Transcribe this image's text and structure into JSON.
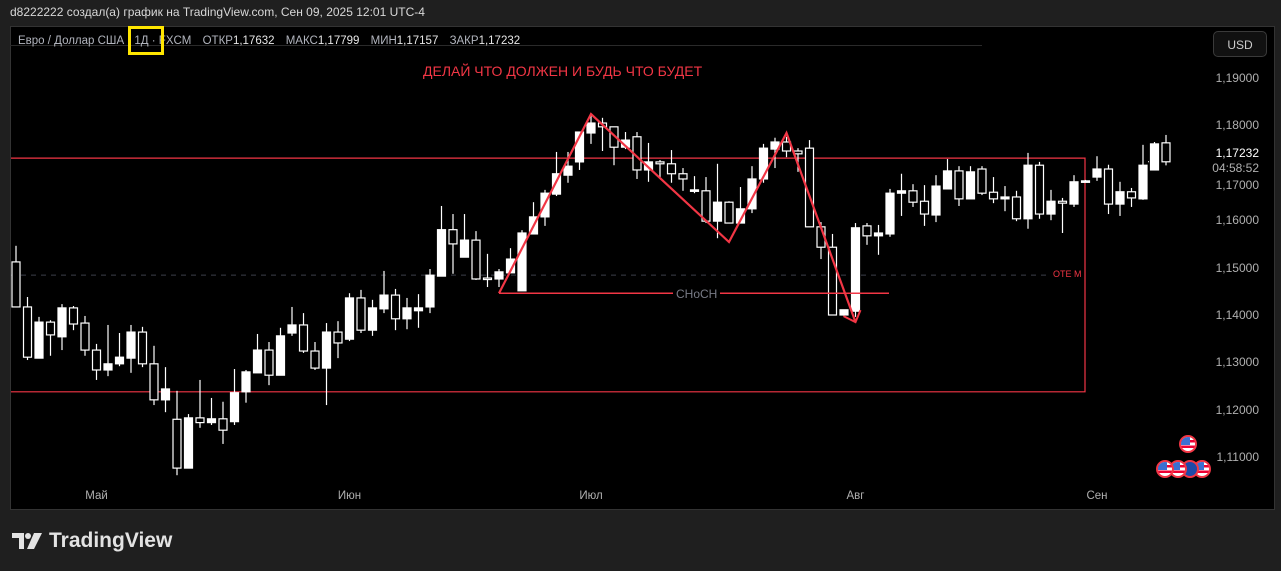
{
  "header": {
    "caption": "d8222222 создал(а) график на TradingView.com, Сен 09, 2025 12:01 UTC-4"
  },
  "legend": {
    "symbol": "Евро / Доллар США",
    "interval": "1Д",
    "exchange": "FXCM",
    "open_label": "ОТКР",
    "open": "1,17632",
    "high_label": "МАКС",
    "high": "1,17799",
    "low_label": "МИН",
    "low": "1,17157",
    "close_label": "ЗАКР",
    "close": "1,17232"
  },
  "currency_button": "USD",
  "annotation_text": "ДЕЛАЙ ЧТО ДОЛЖЕН И БУДЬ ЧТО БУДЕТ",
  "ote_label": "OTE M",
  "choch_label": "CHoCH",
  "current_price": "1,17232",
  "countdown": "04:58:52",
  "footer": {
    "logo": "TradingView"
  },
  "colors": {
    "annotation": "#f23645",
    "candle": "#ffffff",
    "background": "#000000",
    "highlight": "#ffe600"
  },
  "events": [
    {
      "icon": "us-flag-icon"
    },
    {
      "icon": "us-flag-icon"
    },
    {
      "icon": "us-flag-icon"
    },
    {
      "icon": "eu-flag-icon"
    },
    {
      "icon": "us-flag-icon"
    }
  ],
  "chart_data": {
    "type": "candlestick",
    "symbol": "EURUSD",
    "interval": "1D",
    "ylim": [
      1.105,
      1.1925
    ],
    "ytick_labels": [
      "1,19000",
      "1,18000",
      "1,17000",
      "1,16000",
      "1,15000",
      "1,14000",
      "1,13000",
      "1,12000",
      "1,11000"
    ],
    "yticks": [
      1.19,
      1.18,
      1.17,
      1.16,
      1.15,
      1.14,
      1.13,
      1.12,
      1.11
    ],
    "xtick_labels": [
      "Май",
      "Июн",
      "Июл",
      "Авг",
      "Сен"
    ],
    "xtick_candle_index": [
      7,
      29,
      50,
      73,
      94
    ],
    "ohlc": [
      [
        1.1512,
        1.1546,
        1.1417,
        1.1417
      ],
      [
        1.1417,
        1.1438,
        1.1305,
        1.1311
      ],
      [
        1.1309,
        1.1396,
        1.1309,
        1.1385
      ],
      [
        1.1385,
        1.1389,
        1.1314,
        1.1358
      ],
      [
        1.1354,
        1.1423,
        1.1326,
        1.1415
      ],
      [
        1.1415,
        1.1419,
        1.1368,
        1.1381
      ],
      [
        1.1383,
        1.1398,
        1.1314,
        1.1326
      ],
      [
        1.1326,
        1.1339,
        1.1263,
        1.1284
      ],
      [
        1.1284,
        1.1379,
        1.1271,
        1.1297
      ],
      [
        1.1297,
        1.1362,
        1.1292,
        1.1311
      ],
      [
        1.1309,
        1.1379,
        1.1278,
        1.1364
      ],
      [
        1.1364,
        1.1375,
        1.129,
        1.1297
      ],
      [
        1.1297,
        1.1335,
        1.121,
        1.1221
      ],
      [
        1.1221,
        1.129,
        1.1195,
        1.1244
      ],
      [
        1.118,
        1.124,
        1.1062,
        1.1077
      ],
      [
        1.1077,
        1.1191,
        1.1077,
        1.1183
      ],
      [
        1.1183,
        1.1263,
        1.1162,
        1.1173
      ],
      [
        1.1173,
        1.1225,
        1.1168,
        1.1181
      ],
      [
        1.1181,
        1.1217,
        1.1128,
        1.1157
      ],
      [
        1.1175,
        1.1286,
        1.1168,
        1.1236
      ],
      [
        1.1238,
        1.1284,
        1.1215,
        1.128
      ],
      [
        1.1278,
        1.136,
        1.1278,
        1.1326
      ],
      [
        1.1326,
        1.1343,
        1.1252,
        1.1273
      ],
      [
        1.1273,
        1.1373,
        1.1273,
        1.1356
      ],
      [
        1.1362,
        1.1417,
        1.1356,
        1.1379
      ],
      [
        1.1379,
        1.1404,
        1.132,
        1.1324
      ],
      [
        1.1324,
        1.1343,
        1.1284,
        1.1288
      ],
      [
        1.1288,
        1.1383,
        1.121,
        1.1364
      ],
      [
        1.1364,
        1.1387,
        1.1309,
        1.1341
      ],
      [
        1.1349,
        1.1446,
        1.1345,
        1.1436
      ],
      [
        1.1436,
        1.1453,
        1.1362,
        1.1368
      ],
      [
        1.1368,
        1.1432,
        1.1356,
        1.1415
      ],
      [
        1.1413,
        1.1493,
        1.1404,
        1.1442
      ],
      [
        1.1442,
        1.1455,
        1.1368,
        1.1392
      ],
      [
        1.1392,
        1.1436,
        1.137,
        1.1415
      ],
      [
        1.1409,
        1.1444,
        1.1373,
        1.1415
      ],
      [
        1.1417,
        1.1497,
        1.1404,
        1.1484
      ],
      [
        1.1482,
        1.163,
        1.1482,
        1.158
      ],
      [
        1.158,
        1.1613,
        1.1487,
        1.155
      ],
      [
        1.1522,
        1.1613,
        1.1522,
        1.1558
      ],
      [
        1.1558,
        1.1577,
        1.1474,
        1.1476
      ],
      [
        1.1478,
        1.1529,
        1.1459,
        1.1476
      ],
      [
        1.1476,
        1.1497,
        1.1459,
        1.1491
      ],
      [
        1.1489,
        1.1541,
        1.1489,
        1.1518
      ],
      [
        1.1451,
        1.1579,
        1.1451,
        1.1573
      ],
      [
        1.1571,
        1.1638,
        1.1571,
        1.1607
      ],
      [
        1.1607,
        1.1664,
        1.1588,
        1.1657
      ],
      [
        1.1655,
        1.1744,
        1.1651,
        1.1698
      ],
      [
        1.1695,
        1.1744,
        1.1679,
        1.1714
      ],
      [
        1.1723,
        1.1786,
        1.1706,
        1.1786
      ],
      [
        1.1784,
        1.1822,
        1.1761,
        1.1805
      ],
      [
        1.1805,
        1.1816,
        1.1746,
        1.1797
      ],
      [
        1.1797,
        1.1797,
        1.1716,
        1.1754
      ],
      [
        1.1754,
        1.1786,
        1.175,
        1.1769
      ],
      [
        1.1776,
        1.1786,
        1.1687,
        1.1706
      ],
      [
        1.1706,
        1.1763,
        1.1681,
        1.1723
      ],
      [
        1.1723,
        1.1727,
        1.1691,
        1.1719
      ],
      [
        1.1719,
        1.1748,
        1.1679,
        1.1698
      ],
      [
        1.1698,
        1.171,
        1.1662,
        1.1687
      ],
      [
        1.1662,
        1.1693,
        1.1657,
        1.1664
      ],
      [
        1.1662,
        1.1691,
        1.1594,
        1.1598
      ],
      [
        1.1598,
        1.1719,
        1.1562,
        1.1638
      ],
      [
        1.1638,
        1.164,
        1.1594,
        1.1594
      ],
      [
        1.1594,
        1.167,
        1.1594,
        1.1624
      ],
      [
        1.1624,
        1.1714,
        1.1615,
        1.1687
      ],
      [
        1.1687,
        1.1761,
        1.1679,
        1.1752
      ],
      [
        1.175,
        1.1774,
        1.171,
        1.1765
      ],
      [
        1.1765,
        1.1776,
        1.1733,
        1.1746
      ],
      [
        1.1746,
        1.1752,
        1.1702,
        1.174
      ],
      [
        1.1752,
        1.1769,
        1.1586,
        1.1586
      ],
      [
        1.1586,
        1.1596,
        1.1518,
        1.1543
      ],
      [
        1.1543,
        1.1571,
        1.14,
        1.14
      ],
      [
        1.14,
        1.1411,
        1.1398,
        1.1411
      ],
      [
        1.1408,
        1.1594,
        1.1396,
        1.1584
      ],
      [
        1.1588,
        1.1594,
        1.1548,
        1.1567
      ],
      [
        1.1567,
        1.159,
        1.1527,
        1.1573
      ],
      [
        1.1571,
        1.1666,
        1.1565,
        1.1657
      ],
      [
        1.1657,
        1.1698,
        1.1609,
        1.1662
      ],
      [
        1.1662,
        1.1676,
        1.1628,
        1.1638
      ],
      [
        1.164,
        1.1674,
        1.1588,
        1.1613
      ],
      [
        1.1611,
        1.1695,
        1.1596,
        1.1672
      ],
      [
        1.1666,
        1.1729,
        1.1666,
        1.1704
      ],
      [
        1.1704,
        1.1714,
        1.163,
        1.1645
      ],
      [
        1.1645,
        1.1714,
        1.1645,
        1.1702
      ],
      [
        1.1708,
        1.1714,
        1.1653,
        1.1657
      ],
      [
        1.1659,
        1.1691,
        1.1636,
        1.1645
      ],
      [
        1.1645,
        1.1672,
        1.1619,
        1.1649
      ],
      [
        1.1649,
        1.1662,
        1.1598,
        1.1603
      ],
      [
        1.1603,
        1.1742,
        1.1582,
        1.1716
      ],
      [
        1.1716,
        1.1723,
        1.1603,
        1.1613
      ],
      [
        1.1613,
        1.1664,
        1.16,
        1.164
      ],
      [
        1.164,
        1.1647,
        1.1573,
        1.1636
      ],
      [
        1.1634,
        1.1695,
        1.1628,
        1.1681
      ],
      [
        1.1683,
        1.1685,
        1.1681,
        1.1683
      ],
      [
        1.1691,
        1.1735,
        1.1683,
        1.1708
      ],
      [
        1.1708,
        1.1717,
        1.1613,
        1.1634
      ],
      [
        1.1634,
        1.1681,
        1.1609,
        1.166
      ],
      [
        1.166,
        1.1668,
        1.1628,
        1.1647
      ],
      [
        1.1645,
        1.1759,
        1.1643,
        1.1716
      ],
      [
        1.1706,
        1.1765,
        1.1706,
        1.1761
      ],
      [
        1.17632,
        1.17799,
        1.17157,
        1.17232
      ]
    ],
    "drawings": {
      "range_box": {
        "top": 1.1731,
        "bottom": 1.1238
      },
      "ote_level": 1.1484,
      "choch_level": 1.1446,
      "zigzag": [
        [
          42,
          1.1446
        ],
        [
          50,
          1.1824
        ],
        [
          62,
          1.1554
        ],
        [
          67,
          1.1784
        ],
        [
          73,
          1.1385
        ]
      ]
    }
  }
}
